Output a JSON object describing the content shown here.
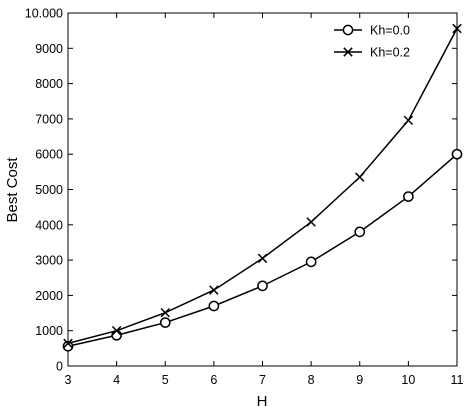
{
  "chart_data": {
    "type": "line",
    "xlabel": "H",
    "ylabel": "Best Cost",
    "xlim": [
      3,
      11
    ],
    "ylim": [
      0,
      10000
    ],
    "x_ticks": [
      3,
      4,
      5,
      6,
      7,
      8,
      9,
      10,
      11
    ],
    "y_ticks": [
      0,
      1000,
      2000,
      3000,
      4000,
      5000,
      6000,
      7000,
      8000,
      9000,
      10000
    ],
    "y_tick_labels": [
      "0",
      "1000",
      "2000",
      "3000",
      "4000",
      "5000",
      "6000",
      "7000",
      "8000",
      "9000",
      "10.000"
    ],
    "grid": false,
    "legend_position": "top-right",
    "x": [
      3,
      4,
      5,
      6,
      7,
      8,
      9,
      10,
      11
    ],
    "series": [
      {
        "name": "Kh=0.0",
        "marker": "circle",
        "values": [
          560,
          870,
          1230,
          1700,
          2270,
          2950,
          3800,
          4800,
          6000
        ]
      },
      {
        "name": "Kh=0.2",
        "marker": "x",
        "values": [
          640,
          1000,
          1510,
          2150,
          3050,
          4080,
          5350,
          6960,
          9560
        ]
      }
    ],
    "line_color": "#000000"
  }
}
